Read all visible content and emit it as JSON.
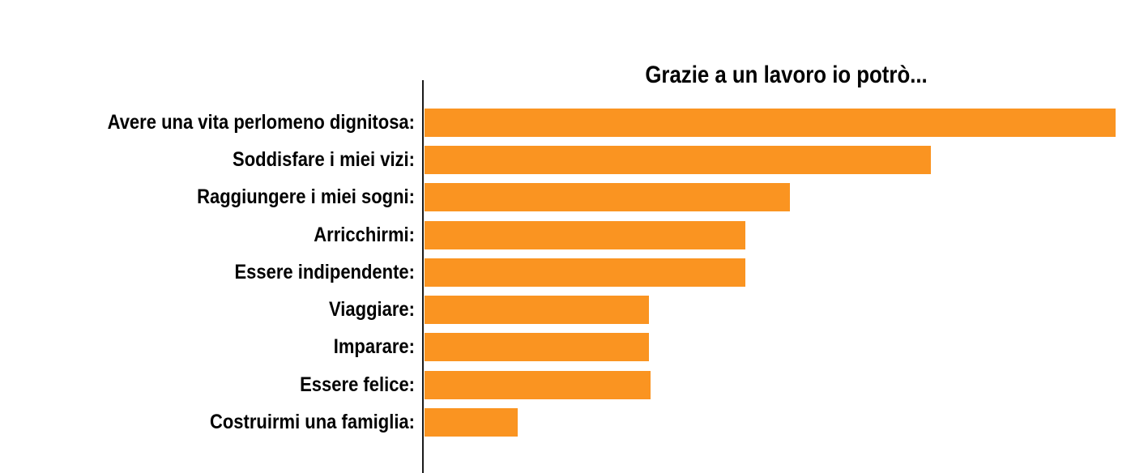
{
  "chart_data": {
    "type": "bar",
    "orientation": "horizontal",
    "title": "Grazie a un lavoro io potrò...",
    "categories": [
      "Avere una vita perlomeno dignitosa:",
      "Soddisfare i miei vizi:",
      "Raggiungere i miei sogni:",
      "Arricchirmi:",
      "Essere indipendente:",
      "Viaggiare:",
      "Imparare:",
      "Essere felice:",
      "Costruirmi una famiglia:"
    ],
    "values": [
      100,
      73.3,
      52.9,
      46.4,
      46.4,
      32.5,
      32.5,
      32.7,
      13.5
    ],
    "value_units": "percent of longest bar (chart shows no numeric axis, ticks or gridlines)",
    "xlabel": "",
    "ylabel": "",
    "xlim": [
      0,
      105
    ],
    "grid": false,
    "legend": false,
    "bar_color": "#FA9421",
    "axis_color": "#1a1a1a",
    "text_color": "#000000",
    "background": "#FFFFFF"
  }
}
